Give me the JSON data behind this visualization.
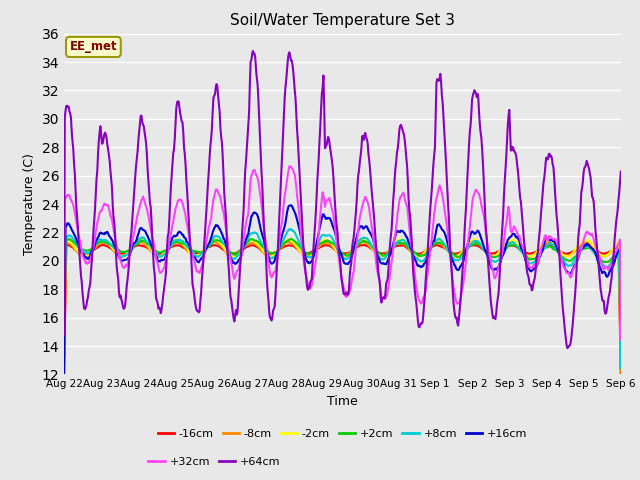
{
  "title": "Soil/Water Temperature Set 3",
  "xlabel": "Time",
  "ylabel": "Temperature (C)",
  "ylim": [
    12,
    36
  ],
  "yticks": [
    12,
    14,
    16,
    18,
    20,
    22,
    24,
    26,
    28,
    30,
    32,
    34,
    36
  ],
  "x_labels": [
    "Aug 22",
    "Aug 23",
    "Aug 24",
    "Aug 25",
    "Aug 26",
    "Aug 27",
    "Aug 28",
    "Aug 29",
    "Aug 30",
    "Aug 31",
    "Sep 1",
    "Sep 2",
    "Sep 3",
    "Sep 4",
    "Sep 5",
    "Sep 6"
  ],
  "annotation_text": "EE_met",
  "annotation_box_color": "#ffffcc",
  "annotation_text_color": "#800000",
  "annotation_border_color": "#999900",
  "bg_color": "#e8e8e8",
  "plot_bg_color": "#e8e8e8",
  "series": [
    {
      "label": "-16cm",
      "color": "#ff0000",
      "lw": 1.5
    },
    {
      "label": "-8cm",
      "color": "#ff8800",
      "lw": 1.5
    },
    {
      "label": "-2cm",
      "color": "#ffff00",
      "lw": 1.5
    },
    {
      "label": "+2cm",
      "color": "#00cc00",
      "lw": 1.5
    },
    {
      "label": "+8cm",
      "color": "#00cccc",
      "lw": 1.5
    },
    {
      "label": "+16cm",
      "color": "#0000cc",
      "lw": 1.5
    },
    {
      "label": "+32cm",
      "color": "#ff44ff",
      "lw": 1.5
    },
    {
      "label": "+64cm",
      "color": "#8800bb",
      "lw": 1.5
    }
  ],
  "days": 15,
  "pts_per_day": 48,
  "base_temp": 21.0,
  "base_trend": -0.02
}
